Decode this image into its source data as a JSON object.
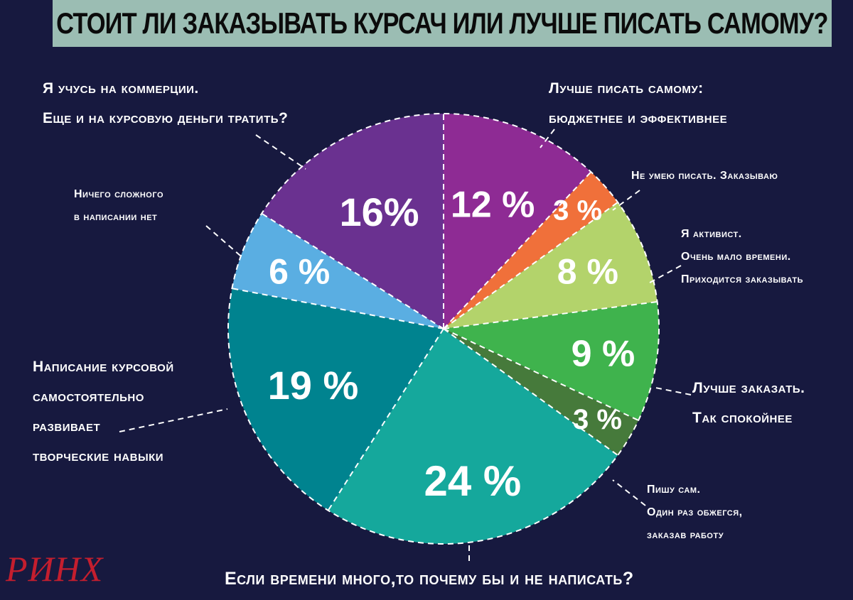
{
  "title": "СТОИТ ЛИ ЗАКАЗЫВАТЬ КУРСАЧ ИЛИ ЛУЧШЕ ПИСАТЬ САМОМУ?",
  "chart_data": {
    "type": "pie",
    "slices": [
      {
        "value": 12,
        "display": "12 %",
        "color": "#8e2b94",
        "label": [
          "Лучше писать самому:",
          "бюджетнее и эффективнее"
        ]
      },
      {
        "value": 3,
        "display": "3 %",
        "color": "#f0703a",
        "label": [
          "Не умею писать. Заказываю"
        ]
      },
      {
        "value": 8,
        "display": "8 %",
        "color": "#b3d36b",
        "label": [
          "Я активист.",
          "Очень мало времени.",
          "Приходится заказывать"
        ]
      },
      {
        "value": 9,
        "display": "9 %",
        "color": "#3fb34d",
        "label": [
          "Лучше заказать.",
          "Так спокойнее"
        ]
      },
      {
        "value": 3,
        "display": "3 %",
        "color": "#467a3b",
        "label": [
          "Пишу сам.",
          "Один раз обжегся,",
          "заказав работу"
        ]
      },
      {
        "value": 24,
        "display": "24 %",
        "color": "#15a89c",
        "label": [
          "Если времени много,то почему бы и не написать?"
        ]
      },
      {
        "value": 19,
        "display": "19 %",
        "color": "#00838f",
        "label": [
          "Написание курсовой",
          "самостоятельно",
          "развивает",
          "творческие навыки"
        ]
      },
      {
        "value": 6,
        "display": "6 %",
        "color": "#5aaee2",
        "label": [
          "Ничего сложного",
          "в написании нет"
        ]
      },
      {
        "value": 16,
        "display": "16%",
        "color": "#6a3190",
        "label": [
          "Я учусь на коммерции.",
          "Еще и на курсовую деньги тратить?"
        ]
      }
    ]
  },
  "watermark": {
    "text": "РИНХ",
    "script": "бург"
  }
}
